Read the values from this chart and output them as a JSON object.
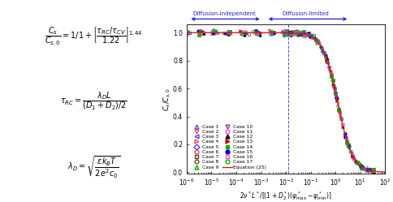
{
  "fig_width": 4.84,
  "fig_height": 2.49,
  "dpi": 100,
  "plot_bg": "#ffffff",
  "arrow_color": "#2222cc",
  "curve_color": "#cc2222",
  "yticks": [
    0.0,
    0.2,
    0.4,
    0.6,
    0.8,
    1.0
  ],
  "cases": [
    {
      "label": "Case 1",
      "marker": "^",
      "color": "#4444ff",
      "filled": false,
      "col": 0
    },
    {
      "label": "Case 2",
      "marker": "v",
      "color": "#ff4444",
      "filled": false,
      "col": 0
    },
    {
      "label": "Case 3",
      "marker": "<",
      "color": "#4444ff",
      "filled": false,
      "col": 0
    },
    {
      "label": "Case 4",
      "marker": ">",
      "color": "#ff4444",
      "filled": false,
      "col": 0
    },
    {
      "label": "Case 5",
      "marker": "D",
      "color": "#4444ff",
      "filled": false,
      "col": 0
    },
    {
      "label": "Case 6",
      "marker": "o",
      "color": "#ff4444",
      "filled": false,
      "col": 0
    },
    {
      "label": "Case 7",
      "marker": "s",
      "color": "#444444",
      "filled": false,
      "col": 0
    },
    {
      "label": "Case 8",
      "marker": "o",
      "color": "#884400",
      "filled": false,
      "col": 0
    },
    {
      "label": "Case 9",
      "marker": "^",
      "color": "#00aa00",
      "filled": false,
      "col": 0
    },
    {
      "label": "Case 10",
      "marker": "v",
      "color": "#884488",
      "filled": false,
      "col": 0
    },
    {
      "label": "Case 11",
      "marker": "o",
      "color": "#ff44ff",
      "filled": false,
      "col": 0
    },
    {
      "label": "Case 12",
      "marker": "^",
      "color": "#000000",
      "filled": true,
      "col": 1
    },
    {
      "label": "Case 13",
      "marker": ">",
      "color": "#cc0000",
      "filled": true,
      "col": 1
    },
    {
      "label": "Case 14",
      "marker": "s",
      "color": "#00aa00",
      "filled": true,
      "col": 1
    },
    {
      "label": "Case 15",
      "marker": "o",
      "color": "#0000cc",
      "filled": true,
      "col": 1
    },
    {
      "label": "Case 16",
      "marker": "s",
      "color": "#ff44ff",
      "filled": false,
      "col": 1
    },
    {
      "label": "Case 17",
      "marker": "o",
      "color": "#00bb00",
      "filled": false,
      "col": 1
    }
  ]
}
